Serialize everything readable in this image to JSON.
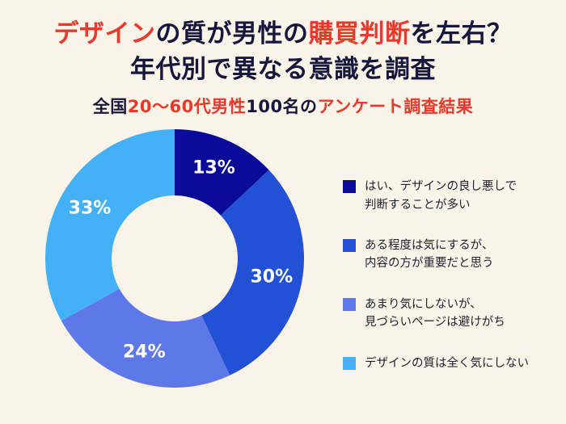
{
  "header": {
    "line1": {
      "seg1": "デザイン",
      "seg2": "の質が男性の",
      "seg3": "購買判断",
      "seg4": "を左右？"
    },
    "line2": "年代別で異なる意識を調査",
    "subtitle": {
      "seg1": "全国",
      "seg2": "20〜60代男性",
      "seg3": "100名の",
      "seg4": "アンケート調査結果"
    }
  },
  "colors": {
    "background": "#faf3e7",
    "title_dark": "#17173d",
    "accent_red": "#e73a2c"
  },
  "chart_data": {
    "type": "pie",
    "donut": true,
    "title": "デザインの質が男性の購買判断を左右？年代別で異なる意識を調査",
    "subtitle": "全国20〜60代男性100名のアンケート調査結果",
    "values": [
      13,
      30,
      24,
      33
    ],
    "labels": [
      "13%",
      "30%",
      "24%",
      "33%"
    ],
    "colors": [
      "#0b0b99",
      "#2351d5",
      "#5e78e8",
      "#44b1f7"
    ],
    "start_angle_deg": 0,
    "direction": "clockwise",
    "legend_position": "right",
    "legend": [
      {
        "label": "はい、デザインの良し悪しで\n判断することが多い"
      },
      {
        "label": "ある程度は気にするが、\n内容の方が重要だと思う"
      },
      {
        "label": "あまり気にしないが、\n見づらいページは避けがち"
      },
      {
        "label": "デザインの質は全く気にしない"
      }
    ]
  }
}
